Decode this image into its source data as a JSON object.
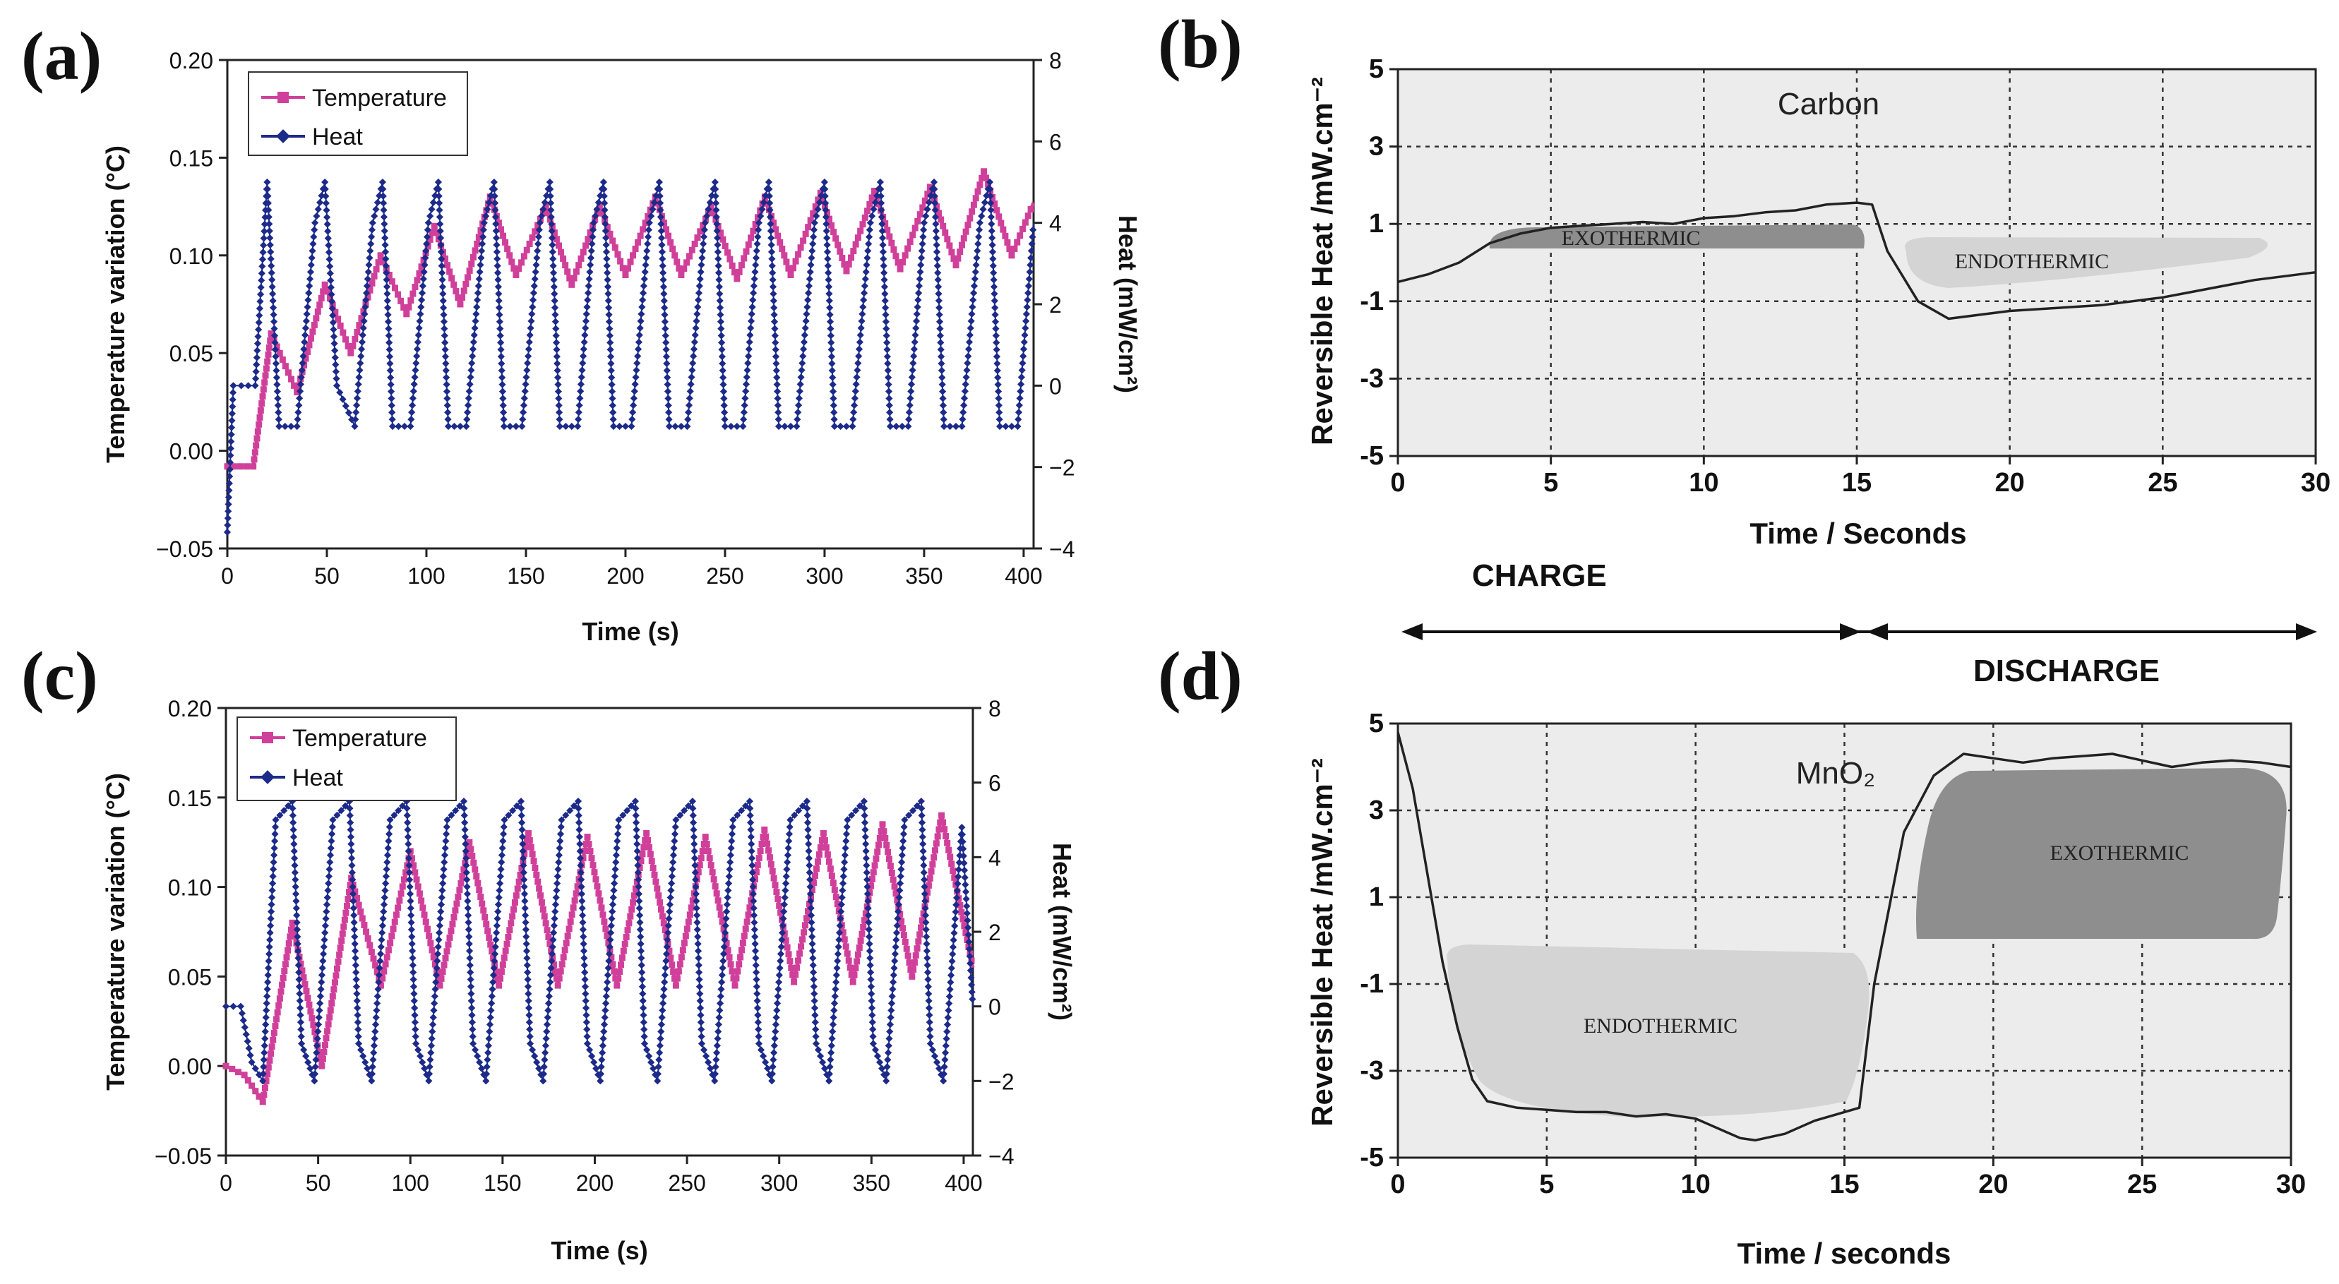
{
  "figure": {
    "phase_labels": {
      "charge": "CHARGE",
      "discharge": "DISCHARGE"
    }
  },
  "chart_data": [
    {
      "id": "a",
      "panel_label": "(a)",
      "type": "line",
      "xlabel": "Time (s)",
      "ylabel": "Temperature variation (°C)",
      "y2label": "Heat (mW/cm²)",
      "xlim": [
        0,
        405
      ],
      "ylim": [
        -0.05,
        0.2
      ],
      "y2lim": [
        -4,
        8
      ],
      "xticks": [
        "0",
        "50",
        "100",
        "150",
        "200",
        "250",
        "300",
        "350",
        "400"
      ],
      "yticks": [
        "−0.05",
        "0.00",
        "0.05",
        "0.10",
        "0.15",
        "0.20"
      ],
      "y2ticks": [
        "−4",
        "−2",
        "0",
        "2",
        "4",
        "6",
        "8"
      ],
      "legend": [
        {
          "name": "Temperature",
          "color": "#d0409a",
          "marker": "square"
        },
        {
          "name": "Heat",
          "color": "#1c2a8a",
          "marker": "diamond"
        }
      ],
      "legend_position": "top-left",
      "series": [
        {
          "name": "Temperature",
          "axis": "left",
          "color": "#d0409a",
          "x": [
            0,
            13,
            22,
            35,
            49,
            62,
            77,
            90,
            104,
            117,
            132,
            145,
            160,
            173,
            187,
            200,
            215,
            228,
            243,
            256,
            270,
            283,
            298,
            311,
            325,
            338,
            353,
            366,
            380,
            394,
            405
          ],
          "y": [
            -0.008,
            -0.008,
            0.06,
            0.03,
            0.085,
            0.05,
            0.1,
            0.07,
            0.115,
            0.075,
            0.13,
            0.09,
            0.125,
            0.085,
            0.125,
            0.09,
            0.13,
            0.09,
            0.125,
            0.088,
            0.13,
            0.09,
            0.132,
            0.092,
            0.133,
            0.093,
            0.135,
            0.095,
            0.143,
            0.1,
            0.127
          ]
        },
        {
          "name": "Heat",
          "axis": "right",
          "color": "#1c2a8a",
          "x": [
            0,
            3,
            7,
            14,
            20,
            26,
            35,
            44,
            49,
            55,
            64,
            73,
            78,
            83,
            92,
            101,
            106,
            111,
            120,
            129,
            134,
            139,
            148,
            157,
            162,
            167,
            176,
            184,
            189,
            194,
            203,
            212,
            217,
            222,
            231,
            240,
            245,
            250,
            259,
            267,
            272,
            277,
            286,
            295,
            300,
            305,
            314,
            323,
            328,
            333,
            342,
            350,
            355,
            360,
            369,
            378,
            383,
            388,
            397,
            405
          ],
          "y": [
            -3.6,
            0,
            0,
            0,
            5,
            -1,
            -1,
            4,
            5,
            0,
            -1,
            4,
            5,
            -1,
            -1,
            4,
            5,
            -1,
            -1,
            4,
            5,
            -1,
            -1,
            4,
            5,
            -1,
            -1,
            4,
            5,
            -1,
            -1,
            4,
            5,
            -1,
            -1,
            4,
            5,
            -1,
            -1,
            4,
            5,
            -1,
            -1,
            4,
            5,
            -1,
            -1,
            4,
            5,
            -1,
            -1,
            4,
            5,
            -1,
            -1,
            4,
            5,
            -1,
            -1,
            4
          ]
        }
      ]
    },
    {
      "id": "b",
      "panel_label": "(b)",
      "type": "line",
      "xlabel": "Time / Seconds",
      "ylabel": "Reversible Heat /mW.cm⁻²",
      "material": "Carbon",
      "xlim": [
        0,
        30
      ],
      "ylim": [
        -5,
        5
      ],
      "xticks": [
        "0",
        "5",
        "10",
        "15",
        "20",
        "25",
        "30"
      ],
      "yticks": [
        "-5",
        "-3",
        "-1",
        "1",
        "3",
        "5"
      ],
      "grid": true,
      "annotations": [
        {
          "text": "EXOTHERMIC",
          "x": 9.5,
          "y": 0.7
        },
        {
          "text": "ENDOTHERMIC",
          "x": 22,
          "y": -0.25
        }
      ],
      "series": [
        {
          "name": "Reversible Heat",
          "color": "#222222",
          "x": [
            0,
            1,
            2,
            3,
            4,
            5,
            6,
            7,
            8,
            9,
            10,
            11,
            12,
            13,
            14,
            15,
            15.5,
            16,
            17,
            18,
            19,
            20,
            21,
            22,
            23,
            24,
            25,
            26,
            27,
            28,
            29,
            30
          ],
          "y": [
            -0.5,
            -0.3,
            0,
            0.5,
            0.75,
            0.9,
            0.95,
            1,
            1.05,
            1,
            1.15,
            1.2,
            1.3,
            1.35,
            1.5,
            1.55,
            1.5,
            0.3,
            -1,
            -1.45,
            -1.35,
            -1.25,
            -1.2,
            -1.15,
            -1.1,
            -1.0,
            -0.9,
            -0.75,
            -0.6,
            -0.45,
            -0.35,
            -0.25
          ]
        }
      ]
    },
    {
      "id": "c",
      "panel_label": "(c)",
      "type": "line",
      "xlabel": "Time (s)",
      "ylabel": "Temperature variation (°C)",
      "y2label": "Heat (mW/cm²)",
      "xlim": [
        0,
        405
      ],
      "ylim": [
        -0.05,
        0.2
      ],
      "y2lim": [
        -4,
        8
      ],
      "xticks": [
        "0",
        "50",
        "100",
        "150",
        "200",
        "250",
        "300",
        "350",
        "400"
      ],
      "yticks": [
        "−0.05",
        "0.00",
        "0.05",
        "0.10",
        "0.15",
        "0.20"
      ],
      "y2ticks": [
        "−4",
        "−2",
        "0",
        "2",
        "4",
        "6",
        "8"
      ],
      "legend": [
        {
          "name": "Temperature",
          "color": "#d0409a",
          "marker": "square"
        },
        {
          "name": "Heat",
          "color": "#1c2a8a",
          "marker": "diamond"
        }
      ],
      "legend_position": "top-left",
      "series": [
        {
          "name": "Temperature",
          "axis": "left",
          "color": "#d0409a",
          "x": [
            0,
            10,
            20,
            36,
            52,
            68,
            84,
            100,
            116,
            132,
            148,
            164,
            180,
            196,
            212,
            228,
            244,
            260,
            276,
            292,
            308,
            324,
            340,
            356,
            372,
            388,
            405
          ],
          "y": [
            0,
            -0.005,
            -0.02,
            0.08,
            0,
            0.105,
            0.045,
            0.12,
            0.045,
            0.125,
            0.045,
            0.13,
            0.045,
            0.128,
            0.045,
            0.13,
            0.045,
            0.128,
            0.045,
            0.132,
            0.047,
            0.13,
            0.047,
            0.135,
            0.05,
            0.14,
            0.055
          ]
        },
        {
          "name": "Heat",
          "axis": "right",
          "color": "#1c2a8a",
          "x": [
            0,
            8,
            14,
            20,
            27,
            36,
            41,
            48,
            58,
            67,
            72,
            79,
            89,
            98,
            103,
            110,
            120,
            129,
            134,
            141,
            151,
            160,
            165,
            172,
            182,
            191,
            196,
            203,
            213,
            222,
            227,
            234,
            244,
            253,
            258,
            265,
            275,
            284,
            289,
            296,
            306,
            315,
            320,
            327,
            337,
            346,
            351,
            358,
            368,
            377,
            382,
            389,
            399,
            405
          ],
          "y": [
            0,
            0,
            -1.5,
            -2,
            5,
            5.5,
            -1,
            -2,
            5,
            5.5,
            -1,
            -2,
            5,
            5.5,
            -1,
            -2,
            5,
            5.5,
            -1,
            -2,
            5,
            5.5,
            -1,
            -2,
            5,
            5.5,
            -1,
            -2,
            5,
            5.5,
            -1,
            -2,
            5,
            5.5,
            -1,
            -2,
            5,
            5.5,
            -1,
            -2,
            5,
            5.5,
            -1,
            -2,
            5,
            5.5,
            -1,
            -2,
            5,
            5.5,
            -1,
            -2,
            4.8,
            0
          ]
        }
      ]
    },
    {
      "id": "d",
      "panel_label": "(d)",
      "type": "line",
      "xlabel": "Time / seconds",
      "ylabel": "Reversible Heat /mW.cm⁻²",
      "material": "MnO₂",
      "xlim": [
        0,
        30
      ],
      "ylim": [
        -5,
        5
      ],
      "xticks": [
        "0",
        "5",
        "10",
        "15",
        "20",
        "25",
        "30"
      ],
      "yticks": [
        "-5",
        "-3",
        "-1",
        "1",
        "3",
        "5"
      ],
      "grid": true,
      "annotations": [
        {
          "text": "EXOTHERMIC",
          "x": 23.5,
          "y": 2.7
        },
        {
          "text": "ENDOTHERMIC",
          "x": 6.5,
          "y": -2.4
        }
      ],
      "series": [
        {
          "name": "Reversible Heat",
          "color": "#222222",
          "x": [
            0,
            0.5,
            1,
            1.5,
            2,
            2.5,
            3,
            4,
            5,
            6,
            7,
            8,
            9,
            10,
            11,
            11.5,
            12,
            13,
            14,
            15,
            15.5,
            16,
            17,
            18,
            19,
            20,
            21,
            22,
            23,
            24,
            25,
            26,
            27,
            28,
            29,
            30
          ],
          "y": [
            4.8,
            3.5,
            1.5,
            -0.5,
            -2,
            -3.2,
            -3.7,
            -3.85,
            -3.9,
            -3.95,
            -3.95,
            -4.05,
            -4.0,
            -4.1,
            -4.4,
            -4.55,
            -4.6,
            -4.45,
            -4.15,
            -3.95,
            -3.85,
            -1,
            2.5,
            3.8,
            4.3,
            4.2,
            4.1,
            4.2,
            4.25,
            4.3,
            4.15,
            4.0,
            4.1,
            4.15,
            4.1,
            4.0
          ]
        }
      ]
    }
  ]
}
